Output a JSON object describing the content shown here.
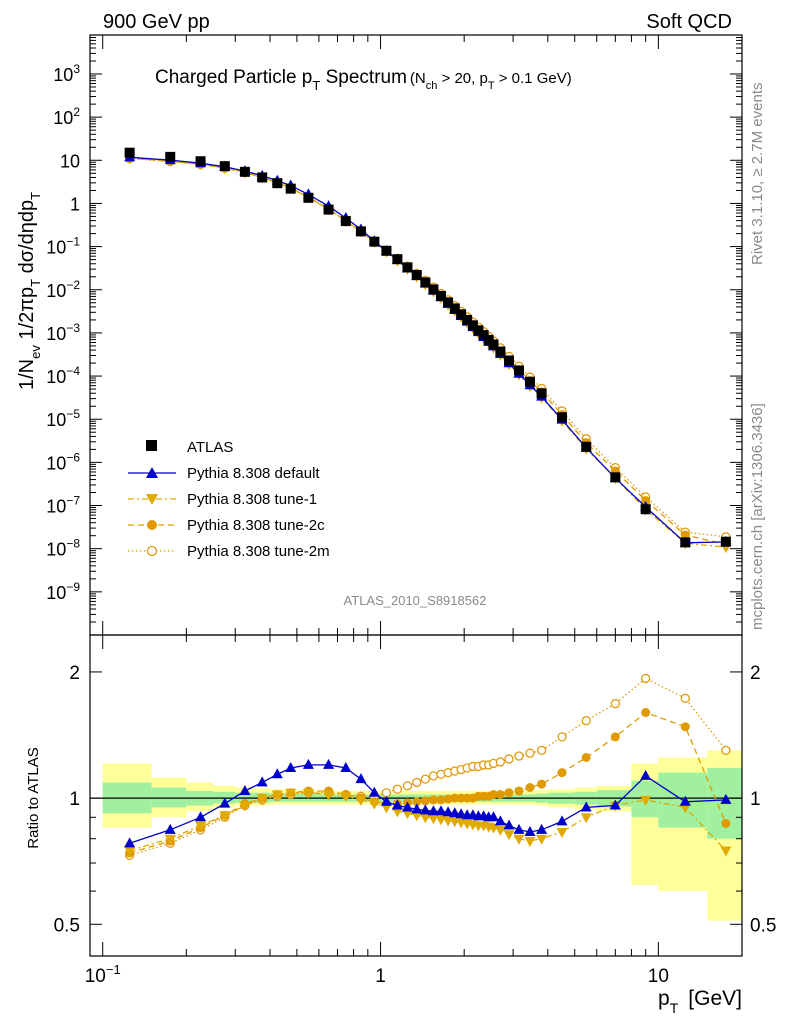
{
  "header": {
    "left": "900 GeV pp",
    "right": "Soft QCD"
  },
  "side": {
    "top": "Rivet 3.1.10, ≥ 2.7M events",
    "bottom": "mcplots.cern.ch [arXiv:1306.3436]"
  },
  "colors": {
    "data": "#000000",
    "default": "#0000cc",
    "tune1": "#e0aa00",
    "tune2c": "#e09a00",
    "tune2m": "#e09a10",
    "band_inner": "#a0f0a0",
    "band_outer": "#ffff99"
  },
  "chart_data": [
    {
      "type": "scatter",
      "title_main": "Charged Particle p",
      "title_main_sub": "T",
      "title_main_rest": " Spectrum",
      "title_cond": "(N",
      "title_cond_sub1": "ch",
      "title_cond_mid": " > 20, p",
      "title_cond_sub2": "T",
      "title_cond_end": " > 0.1 GeV)",
      "ylabel": "1/N_ev 1/2πp_T dσ/dηdp_T",
      "ylabel_parts": [
        "1/N",
        "ev",
        " 1/2πp",
        "T",
        " dσ/dηdp",
        "T"
      ],
      "yscale": "log",
      "xscale": "log",
      "xlim": [
        0.09,
        20
      ],
      "ylim": [
        1e-10,
        8000
      ],
      "yticks": [
        {
          "v": 1e-09,
          "b": "10",
          "e": "−9"
        },
        {
          "v": 1e-08,
          "b": "10",
          "e": "−8"
        },
        {
          "v": 1e-07,
          "b": "10",
          "e": "−7"
        },
        {
          "v": 1e-06,
          "b": "10",
          "e": "−6"
        },
        {
          "v": 1e-05,
          "b": "10",
          "e": "−5"
        },
        {
          "v": 0.0001,
          "b": "10",
          "e": "−4"
        },
        {
          "v": 0.001,
          "b": "10",
          "e": "−3"
        },
        {
          "v": 0.01,
          "b": "10",
          "e": "−2"
        },
        {
          "v": 0.1,
          "b": "10",
          "e": "−1"
        },
        {
          "v": 1,
          "b": "1",
          "e": ""
        },
        {
          "v": 10,
          "b": "10",
          "e": ""
        },
        {
          "v": 100,
          "b": "10",
          "e": "2"
        },
        {
          "v": 1000,
          "b": "10",
          "e": "3"
        }
      ],
      "watermark": "ATLAS_2010_S8918562",
      "legend_position": "bottom-left",
      "legend": [
        "ATLAS",
        "Pythia 8.308 default",
        "Pythia 8.308 tune-1",
        "Pythia 8.308 tune-2c",
        "Pythia 8.308 tune-2m"
      ],
      "x": [
        0.125,
        0.175,
        0.225,
        0.275,
        0.325,
        0.375,
        0.425,
        0.475,
        0.55,
        0.65,
        0.75,
        0.85,
        0.95,
        1.05,
        1.15,
        1.25,
        1.35,
        1.45,
        1.55,
        1.65,
        1.75,
        1.85,
        1.95,
        2.05,
        2.15,
        2.25,
        2.35,
        2.45,
        2.55,
        2.7,
        2.9,
        3.15,
        3.45,
        3.8,
        4.5,
        5.5,
        7.0,
        9.0,
        12.5,
        17.5
      ],
      "series": [
        {
          "name": "ATLAS",
          "marker": "square",
          "values": [
            15.0,
            12.0,
            9.5,
            7.3,
            5.4,
            4.0,
            2.95,
            2.2,
            1.35,
            0.72,
            0.39,
            0.225,
            0.13,
            0.08,
            0.051,
            0.033,
            0.022,
            0.0148,
            0.0102,
            0.0072,
            0.0051,
            0.0037,
            0.0027,
            0.002,
            0.0015,
            0.00115,
            0.00089,
            0.00069,
            0.00054,
            0.00037,
            0.00023,
            0.000135,
            7.4e-05,
            3.98e-05,
            1.11e-05,
            2.3e-06,
            4.5e-07,
            8.2e-08,
            1.4e-08,
            1.45e-08
          ]
        },
        {
          "name": "Pythia 8.308 default",
          "marker": "triangle-up",
          "ratio": [
            0.78,
            0.84,
            0.9,
            0.97,
            1.04,
            1.09,
            1.14,
            1.18,
            1.2,
            1.2,
            1.18,
            1.11,
            1.03,
            0.98,
            0.96,
            0.95,
            0.94,
            0.935,
            0.93,
            0.93,
            0.925,
            0.92,
            0.915,
            0.91,
            0.91,
            0.905,
            0.905,
            0.9,
            0.9,
            0.88,
            0.86,
            0.84,
            0.83,
            0.84,
            0.88,
            0.95,
            0.96,
            1.13,
            0.98,
            0.99
          ]
        },
        {
          "name": "Pythia 8.308 tune-1",
          "marker": "triangle-down",
          "ratio": [
            0.75,
            0.8,
            0.86,
            0.91,
            0.96,
            1.0,
            1.02,
            1.03,
            1.03,
            1.02,
            1.01,
            0.99,
            0.97,
            0.95,
            0.93,
            0.92,
            0.91,
            0.9,
            0.895,
            0.89,
            0.885,
            0.88,
            0.875,
            0.87,
            0.865,
            0.86,
            0.86,
            0.855,
            0.85,
            0.84,
            0.82,
            0.8,
            0.79,
            0.8,
            0.83,
            0.9,
            0.96,
            0.99,
            0.95,
            0.75
          ]
        },
        {
          "name": "Pythia 8.308 tune-2c",
          "marker": "circle",
          "ratio": [
            0.74,
            0.79,
            0.85,
            0.91,
            0.97,
            1.0,
            1.02,
            1.03,
            1.04,
            1.04,
            1.02,
            1.0,
            0.98,
            0.97,
            0.97,
            0.975,
            0.98,
            0.985,
            0.99,
            0.99,
            0.995,
            1.0,
            1.0,
            1.0,
            1.0,
            1.01,
            1.01,
            1.01,
            1.02,
            1.02,
            1.03,
            1.04,
            1.06,
            1.08,
            1.15,
            1.25,
            1.4,
            1.6,
            1.48,
            0.87
          ]
        },
        {
          "name": "Pythia 8.308 tune-2m",
          "marker": "circle-open",
          "ratio": [
            0.73,
            0.78,
            0.84,
            0.9,
            0.96,
            0.99,
            1.01,
            1.02,
            1.03,
            1.03,
            1.02,
            1.01,
            1.01,
            1.03,
            1.05,
            1.07,
            1.09,
            1.11,
            1.13,
            1.14,
            1.15,
            1.16,
            1.17,
            1.18,
            1.19,
            1.19,
            1.2,
            1.2,
            1.21,
            1.22,
            1.24,
            1.26,
            1.28,
            1.3,
            1.4,
            1.53,
            1.68,
            1.93,
            1.73,
            1.3
          ]
        }
      ]
    },
    {
      "type": "scatter",
      "ylabel": "Ratio to ATLAS",
      "xlabel_main": "p",
      "xlabel_sub": "T",
      "xlabel_unit": "[GeV]",
      "xscale": "log",
      "yscale": "log",
      "xlim": [
        0.09,
        20
      ],
      "ylim": [
        0.42,
        2.45
      ],
      "yticks": [
        {
          "v": 0.5,
          "label": "0.5"
        },
        {
          "v": 1,
          "label": "1"
        },
        {
          "v": 2,
          "label": "2"
        }
      ],
      "xticks": [
        {
          "v": 0.1,
          "b": "10",
          "e": "−1"
        },
        {
          "v": 1,
          "b": "1",
          "e": ""
        },
        {
          "v": 10,
          "b": "10",
          "e": ""
        }
      ],
      "band_edges": [
        0.1,
        0.15,
        0.2,
        0.25,
        0.3,
        0.35,
        0.4,
        0.45,
        0.5,
        0.6,
        0.7,
        0.8,
        0.9,
        1.0,
        1.1,
        1.2,
        1.3,
        1.4,
        1.5,
        1.6,
        1.7,
        1.8,
        1.9,
        2.0,
        2.1,
        2.2,
        2.3,
        2.4,
        2.5,
        2.6,
        2.8,
        3.0,
        3.3,
        3.6,
        4.0,
        5.0,
        6.0,
        8.0,
        10.0,
        15.0,
        20.0
      ],
      "band_inner": [
        [
          0.92,
          1.09
        ],
        [
          0.95,
          1.06
        ],
        [
          0.96,
          1.04
        ],
        [
          0.97,
          1.035
        ],
        [
          0.975,
          1.03
        ],
        [
          0.975,
          1.03
        ],
        [
          0.98,
          1.025
        ],
        [
          0.98,
          1.025
        ],
        [
          0.98,
          1.025
        ],
        [
          0.98,
          1.02
        ],
        [
          0.98,
          1.02
        ],
        [
          0.98,
          1.02
        ],
        [
          0.98,
          1.02
        ],
        [
          0.98,
          1.02
        ],
        [
          0.98,
          1.02
        ],
        [
          0.98,
          1.02
        ],
        [
          0.98,
          1.02
        ],
        [
          0.98,
          1.02
        ],
        [
          0.98,
          1.02
        ],
        [
          0.98,
          1.02
        ],
        [
          0.98,
          1.02
        ],
        [
          0.98,
          1.02
        ],
        [
          0.98,
          1.02
        ],
        [
          0.98,
          1.02
        ],
        [
          0.98,
          1.02
        ],
        [
          0.98,
          1.02
        ],
        [
          0.98,
          1.02
        ],
        [
          0.98,
          1.02
        ],
        [
          0.98,
          1.02
        ],
        [
          0.98,
          1.02
        ],
        [
          0.98,
          1.02
        ],
        [
          0.98,
          1.02
        ],
        [
          0.98,
          1.02
        ],
        [
          0.975,
          1.025
        ],
        [
          0.97,
          1.03
        ],
        [
          0.965,
          1.035
        ],
        [
          0.955,
          1.045
        ],
        [
          0.9,
          1.1
        ],
        [
          0.85,
          1.15
        ],
        [
          0.8,
          1.18
        ]
      ],
      "band_outer": [
        [
          0.85,
          1.21
        ],
        [
          0.9,
          1.12
        ],
        [
          0.93,
          1.09
        ],
        [
          0.95,
          1.07
        ],
        [
          0.96,
          1.06
        ],
        [
          0.96,
          1.055
        ],
        [
          0.965,
          1.05
        ],
        [
          0.965,
          1.05
        ],
        [
          0.965,
          1.045
        ],
        [
          0.965,
          1.04
        ],
        [
          0.965,
          1.04
        ],
        [
          0.965,
          1.04
        ],
        [
          0.965,
          1.04
        ],
        [
          0.965,
          1.04
        ],
        [
          0.965,
          1.04
        ],
        [
          0.965,
          1.04
        ],
        [
          0.965,
          1.04
        ],
        [
          0.965,
          1.04
        ],
        [
          0.965,
          1.04
        ],
        [
          0.965,
          1.04
        ],
        [
          0.965,
          1.04
        ],
        [
          0.965,
          1.04
        ],
        [
          0.965,
          1.04
        ],
        [
          0.965,
          1.04
        ],
        [
          0.965,
          1.04
        ],
        [
          0.965,
          1.04
        ],
        [
          0.965,
          1.04
        ],
        [
          0.965,
          1.04
        ],
        [
          0.965,
          1.04
        ],
        [
          0.965,
          1.04
        ],
        [
          0.965,
          1.04
        ],
        [
          0.965,
          1.04
        ],
        [
          0.965,
          1.04
        ],
        [
          0.96,
          1.045
        ],
        [
          0.95,
          1.05
        ],
        [
          0.94,
          1.06
        ],
        [
          0.93,
          1.07
        ],
        [
          0.62,
          1.21
        ],
        [
          0.6,
          1.25
        ],
        [
          0.51,
          1.3
        ]
      ]
    }
  ]
}
